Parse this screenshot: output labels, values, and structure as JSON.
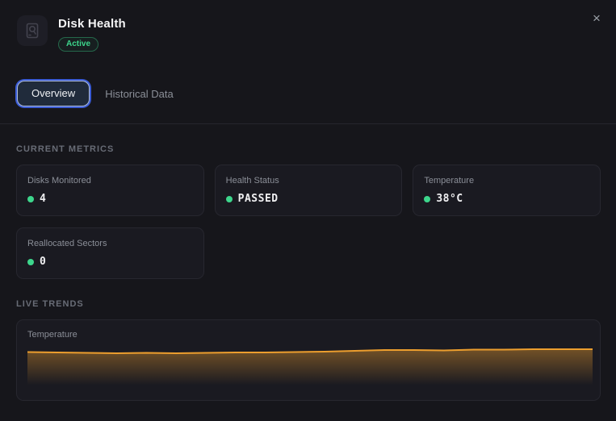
{
  "header": {
    "title": "Disk Health",
    "status_badge": "Active",
    "close_label": "×"
  },
  "tabs": [
    {
      "label": "Overview",
      "active": true
    },
    {
      "label": "Historical Data",
      "active": false
    }
  ],
  "current_metrics": {
    "title": "CURRENT METRICS",
    "metrics": [
      {
        "label": "Disks Monitored",
        "value": "4"
      },
      {
        "label": "Health Status",
        "value": "PASSED"
      },
      {
        "label": "Temperature",
        "value": "38°C"
      },
      {
        "label": "Reallocated Sectors",
        "value": "0"
      }
    ]
  },
  "live_trends": {
    "title": "LIVE TRENDS",
    "chart_label": "Temperature"
  },
  "chart_data": {
    "type": "area",
    "title": "Temperature",
    "series": [
      {
        "name": "Temperature",
        "values": [
          38.15,
          38.1,
          38.05,
          38.0,
          38.05,
          38.0,
          38.05,
          38.1,
          38.1,
          38.15,
          38.2,
          38.3,
          38.4,
          38.4,
          38.35,
          38.45,
          38.45,
          38.5,
          38.5,
          38.5
        ]
      }
    ],
    "xlabel": "",
    "ylabel": "",
    "ylim": [
      34,
      39
    ],
    "grid": false,
    "legend": "none"
  },
  "colors": {
    "bg": "#16161b",
    "card_bg": "#1a1a21",
    "card_border": "#27272f",
    "green": "#3dd68c",
    "tab_active_bg": "#202b3b",
    "tab_ring": "#3b5cd6",
    "chart_line": "#ec9e2e"
  }
}
